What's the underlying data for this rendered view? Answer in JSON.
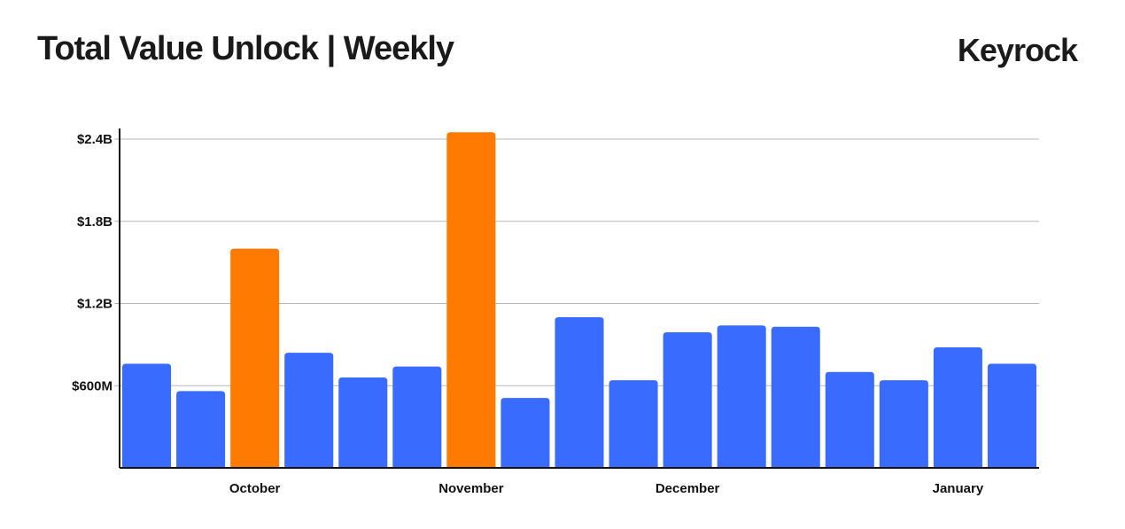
{
  "header": {
    "title": "Total Value Unlock | Weekly",
    "brand": "Keyrock"
  },
  "colors": {
    "default_bar": "#3a6bff",
    "highlight_bar": "#ff7a00",
    "grid": "#b8b8b8",
    "axis": "#111111"
  },
  "chart_data": {
    "type": "bar",
    "title": "Total Value Unlock | Weekly",
    "xlabel": "",
    "ylabel": "",
    "ylim": [
      0,
      2400000000
    ],
    "grid": true,
    "legend": "none",
    "yticks": [
      {
        "value": 600000000,
        "label": "$600M"
      },
      {
        "value": 1200000000,
        "label": "$1.2B"
      },
      {
        "value": 1800000000,
        "label": "$1.8B"
      },
      {
        "value": 2400000000,
        "label": "$2.4B"
      }
    ],
    "xticks": [
      {
        "index": 2,
        "label": "October"
      },
      {
        "index": 6,
        "label": "November"
      },
      {
        "index": 10,
        "label": "December"
      },
      {
        "index": 15,
        "label": "January"
      }
    ],
    "values": [
      760000000,
      560000000,
      1600000000,
      840000000,
      660000000,
      740000000,
      2450000000,
      510000000,
      1100000000,
      640000000,
      990000000,
      1040000000,
      1030000000,
      700000000,
      640000000,
      880000000,
      760000000
    ],
    "highlight": [
      false,
      false,
      true,
      false,
      false,
      false,
      true,
      false,
      false,
      false,
      false,
      false,
      false,
      false,
      false,
      false,
      false
    ]
  }
}
